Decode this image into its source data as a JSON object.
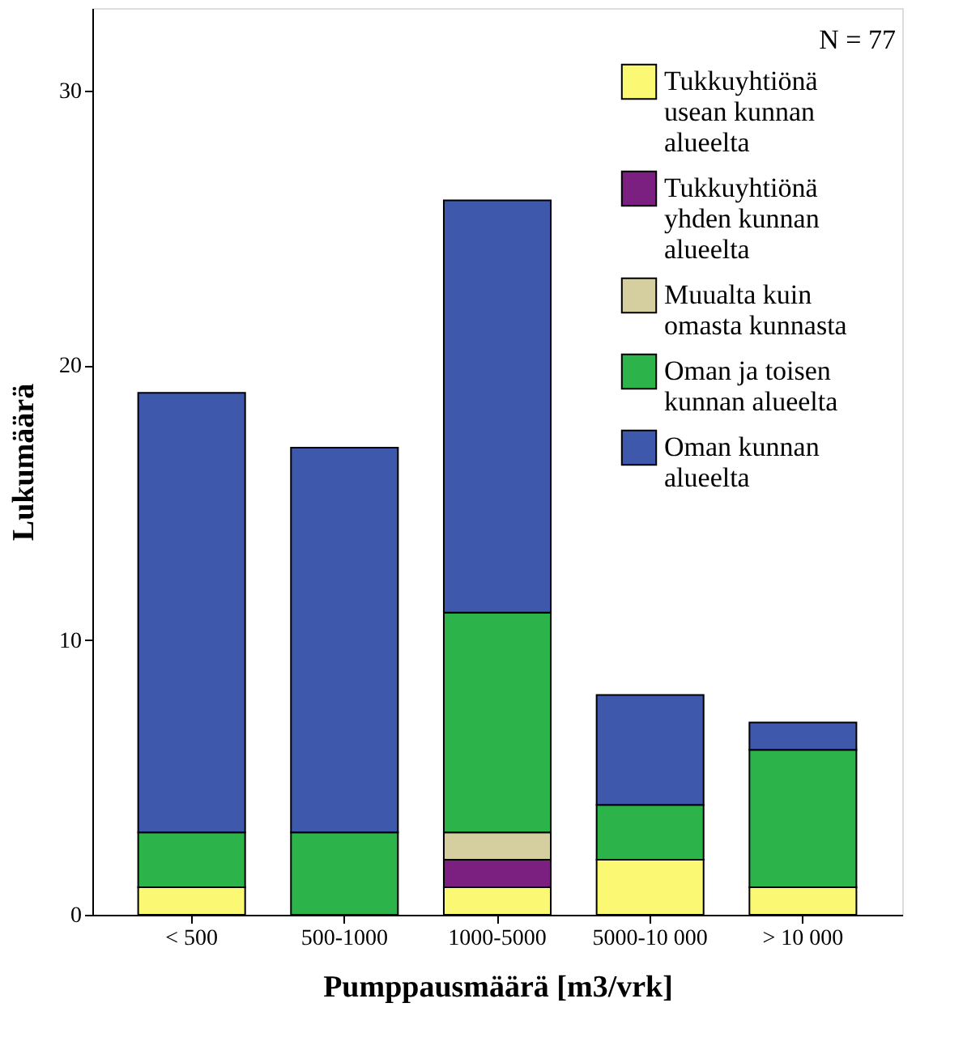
{
  "chart_data": {
    "type": "bar",
    "stacked": true,
    "xlabel": "Pumppausmäärä [m3/vrk]",
    "ylabel": "Lukumäärä",
    "categories": [
      "< 500",
      "500-1000",
      "1000-5000",
      "5000-10 000",
      "> 10 000"
    ],
    "series": [
      {
        "name": "Tukkuyhtiönä usean kunnan alueelta",
        "color": "#fbf873",
        "values": [
          1,
          0,
          1,
          2,
          1
        ]
      },
      {
        "name": "Tukkuyhtiönä yhden kunnan alueelta",
        "color": "#7b2080",
        "values": [
          0,
          0,
          1,
          0,
          0
        ]
      },
      {
        "name": "Muualta kuin omasta kunnasta",
        "color": "#d5ce9f",
        "values": [
          0,
          0,
          1,
          0,
          0
        ]
      },
      {
        "name": "Oman ja toisen kunnan alueelta",
        "color": "#2cb34a",
        "values": [
          2,
          3,
          8,
          2,
          5
        ]
      },
      {
        "name": "Oman kunnan alueelta",
        "color": "#3e58ac",
        "values": [
          16,
          14,
          15,
          4,
          1
        ]
      }
    ],
    "ylim": [
      0,
      33
    ],
    "yticks": [
      0,
      10,
      20,
      30
    ],
    "grid": false,
    "legend": "top right",
    "annotations": [
      "N = 77"
    ]
  }
}
